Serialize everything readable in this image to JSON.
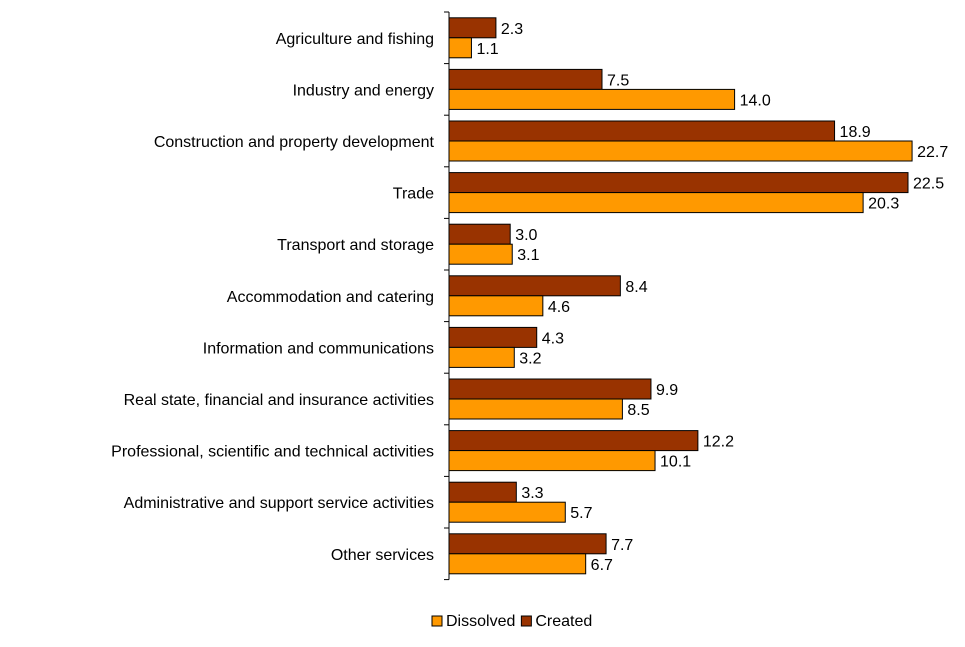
{
  "chart_data": {
    "type": "bar",
    "orientation": "horizontal",
    "categories": [
      "Agriculture and fishing",
      "Industry and energy",
      "Construction and property development",
      "Trade",
      "Transport and storage",
      "Accommodation and catering",
      "Information and communications",
      "Real state, financial and insurance activities",
      "Professional, scientific and technical activities",
      "Administrative and support service activities",
      "Other services"
    ],
    "series": [
      {
        "name": "Created",
        "color": "#993300",
        "values": [
          2.3,
          7.5,
          18.9,
          22.5,
          3.0,
          8.4,
          4.3,
          9.9,
          12.2,
          3.3,
          7.7
        ],
        "labels": [
          "2.3",
          "7.5",
          "18.9",
          "22.5",
          "3.0",
          "8.4",
          "4.3",
          "9.9",
          "12.2",
          "3.3",
          "7.7"
        ]
      },
      {
        "name": "Dissolved",
        "color": "#FF9900",
        "values": [
          1.1,
          14.0,
          22.7,
          20.3,
          3.1,
          4.6,
          3.2,
          8.5,
          10.1,
          5.7,
          6.7
        ],
        "labels": [
          "1.1",
          "14.0",
          "22.7",
          "20.3",
          "3.1",
          "4.6",
          "3.2",
          "8.5",
          "10.1",
          "5.7",
          "6.7"
        ]
      }
    ],
    "legend": {
      "placement": "bottom",
      "order": [
        "Dissolved",
        "Created"
      ]
    },
    "xlim": [
      0,
      23
    ],
    "grid": false
  }
}
